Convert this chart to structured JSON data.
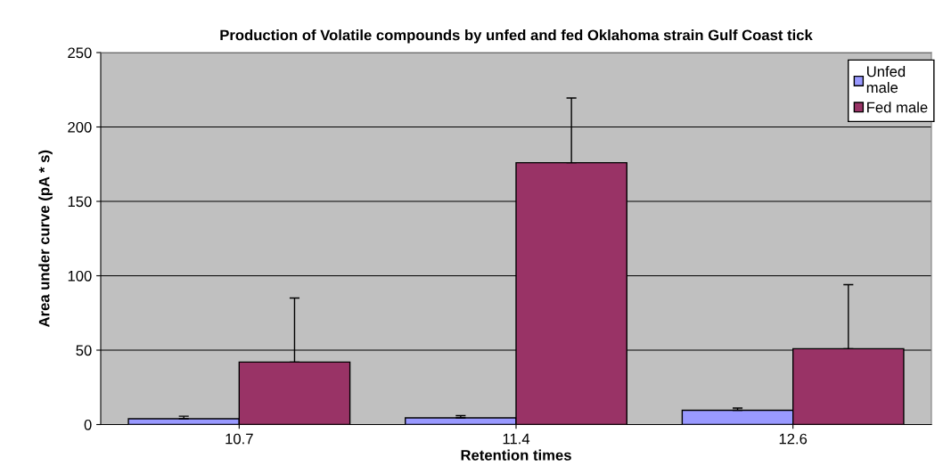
{
  "chart_data": {
    "type": "bar",
    "title": "Production of Volatile compounds by unfed and fed Oklahoma strain Gulf Coast tick",
    "xlabel": "Retention times",
    "ylabel": "Area under curve (pA * s)",
    "categories": [
      "10.7",
      "11.4",
      "12.6"
    ],
    "series": [
      {
        "name": "Unfed\nmale",
        "color": "#9999ff",
        "values": [
          3.9,
          4.5,
          9.6
        ],
        "errors": [
          [
            3.9,
            5.6
          ],
          [
            4.5,
            6
          ],
          [
            9.6,
            11.1
          ]
        ]
      },
      {
        "name": "Fed male",
        "color": "#993366",
        "values": [
          42,
          176,
          51
        ],
        "errors": [
          [
            42,
            85
          ],
          [
            176,
            219.5
          ],
          [
            51,
            94
          ]
        ]
      }
    ],
    "ylim": [
      0,
      250
    ],
    "yticks": [
      0,
      50,
      100,
      150,
      200,
      250
    ],
    "grid": "y",
    "legend": "top right"
  }
}
